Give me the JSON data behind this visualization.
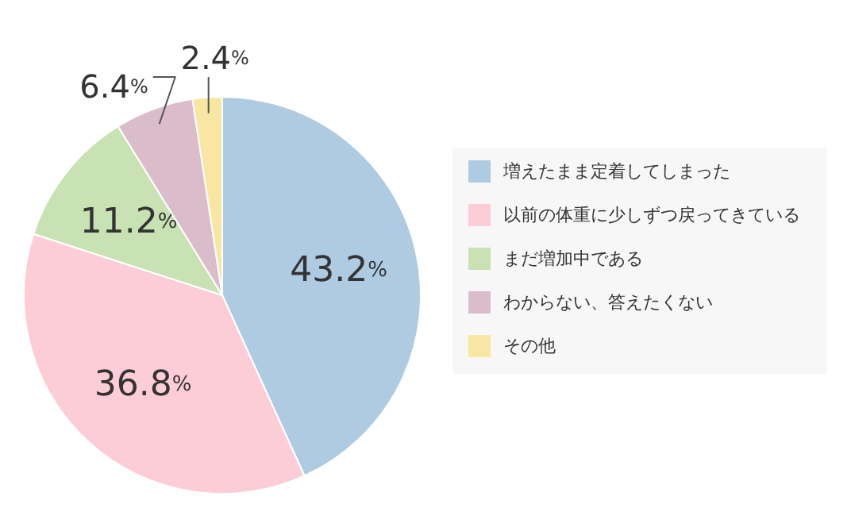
{
  "chart_data": {
    "type": "pie",
    "categories": [
      "増えたまま定着してしまった",
      "以前の体重に少しずつ戻ってきている",
      "まだ増加中である",
      "わからない、答えたくない",
      "その他"
    ],
    "values": [
      43.2,
      36.8,
      11.2,
      6.4,
      2.4
    ],
    "colors": [
      "#aecbe2",
      "#fccdd6",
      "#c8e2b4",
      "#dbbccb",
      "#f7e7a3"
    ],
    "value_labels": [
      "43.2%",
      "36.8%",
      "11.2%",
      "6.4%",
      "2.4%"
    ],
    "legend": "right"
  }
}
